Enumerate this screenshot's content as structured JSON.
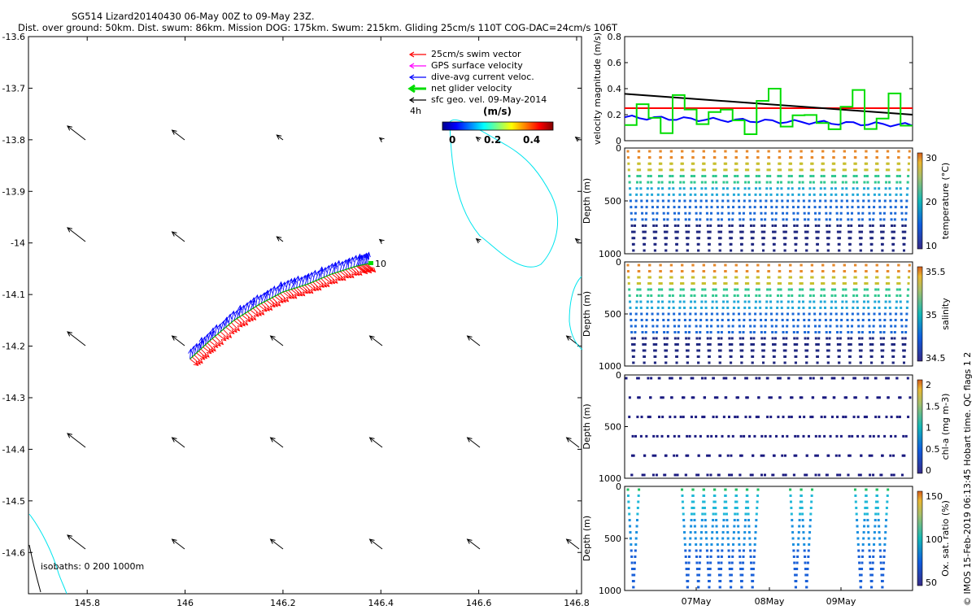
{
  "header": {
    "title": "SG514 Lizard20140430 06-May 00Z to 09-May 23Z.",
    "subtitle": "Dist. over ground: 50km. Dist. swum: 86km. Mission DOG: 175km. Swum: 215km. Gliding 25cm/s 110T COG-DAC=24cm/s 106T"
  },
  "legend": {
    "items": [
      {
        "label": "25cm/s swim vector",
        "color": "#ff0000"
      },
      {
        "label": "GPS surface velocity",
        "color": "#ff00ff"
      },
      {
        "label": "dive-avg current veloc.",
        "color": "#0000ff"
      },
      {
        "label": "net glider velocity",
        "color": "#00dd00"
      },
      {
        "label": "sfc geo. vel. 09-May-2014",
        "color": "#000000"
      }
    ],
    "interval": "4h",
    "colorbar_unit": "(m/s)",
    "colorbar_ticks": [
      "0",
      "0.2",
      "0.4"
    ]
  },
  "isobaths_label": "isobaths: 0   200  1000m",
  "track_end_label": "10",
  "side_credit": "© IMOS 15-Feb-2019 06:13:45 Hobart time. QC flags 1  2",
  "chart_data": [
    {
      "type": "map",
      "x_ticks": [
        "145.8",
        "146",
        "146.2",
        "146.4",
        "146.6",
        "146.8"
      ],
      "y_ticks": [
        "-13.6",
        "-13.7",
        "-13.8",
        "-13.9",
        "-14",
        "-14.1",
        "-14.2",
        "-14.3",
        "-14.4",
        "-14.5",
        "-14.6"
      ],
      "xlim": [
        145.68,
        146.81
      ],
      "ylim": [
        -14.68,
        -13.6
      ],
      "track": [
        [
          146.01,
          -14.225
        ],
        [
          146.05,
          -14.19
        ],
        [
          146.1,
          -14.15
        ],
        [
          146.15,
          -14.12
        ],
        [
          146.2,
          -14.095
        ],
        [
          146.25,
          -14.08
        ],
        [
          146.3,
          -14.06
        ],
        [
          146.35,
          -14.045
        ],
        [
          146.375,
          -14.04
        ]
      ]
    },
    {
      "type": "line",
      "ylabel": "velocity magnitude (m/s)",
      "ylim": [
        0,
        0.8
      ],
      "y_ticks": [
        "0",
        "0.2",
        "0.4",
        "0.6",
        "0.8"
      ],
      "series": [
        {
          "color": "#ff0000",
          "values": [
            0.25,
            0.25
          ]
        },
        {
          "color": "#000000",
          "values": [
            0.36,
            0.2
          ]
        },
        {
          "color": "#0000ff",
          "values": [
            0.18,
            0.12
          ]
        },
        {
          "color": "#00dd00",
          "values": [
            0.2,
            0.4,
            0.08,
            0.33,
            0.15,
            0.36,
            0.16
          ]
        }
      ]
    },
    {
      "type": "scatter",
      "ylabel": "Depth (m)",
      "y_ticks": [
        "0",
        "500",
        "1000"
      ],
      "colorbar_label": "temperature (°C)",
      "colorbar_ticks": [
        "10",
        "20",
        "30"
      ]
    },
    {
      "type": "scatter",
      "ylabel": "Depth (m)",
      "y_ticks": [
        "0",
        "500",
        "1000"
      ],
      "colorbar_label": "salinity",
      "colorbar_ticks": [
        "34.5",
        "35",
        "35.5"
      ]
    },
    {
      "type": "scatter",
      "ylabel": "Depth (m)",
      "y_ticks": [
        "0",
        "500",
        "1000"
      ],
      "colorbar_label": "chl-a (mg m-3)",
      "colorbar_ticks": [
        "0",
        "0.5",
        "1",
        "1.5",
        "2"
      ]
    },
    {
      "type": "scatter",
      "ylabel": "Depth (m)",
      "y_ticks": [
        "0",
        "500",
        "1000"
      ],
      "colorbar_label": "Ox. sat. ratio (%)",
      "colorbar_ticks": [
        "50",
        "100",
        "150"
      ],
      "x_ticks": [
        "07May",
        "08May",
        "09May"
      ]
    }
  ]
}
